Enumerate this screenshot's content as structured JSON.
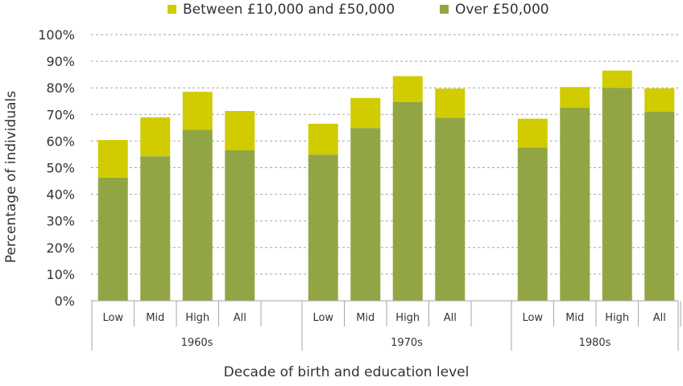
{
  "chart_data": {
    "type": "bar",
    "stacked": true,
    "title": "",
    "xlabel": "Decade of birth and education level",
    "ylabel": "Percentage of individuals",
    "ylim": [
      0,
      100
    ],
    "yticks": [
      0,
      10,
      20,
      30,
      40,
      50,
      60,
      70,
      80,
      90,
      100
    ],
    "ytick_suffix": "%",
    "grid": "horizontal dashed",
    "legend_position": "top",
    "groups": [
      {
        "label": "1960s",
        "categories": [
          "Low",
          "Mid",
          "High",
          "All"
        ]
      },
      {
        "label": "1970s",
        "categories": [
          "Low",
          "Mid",
          "High",
          "All"
        ]
      },
      {
        "label": "1980s",
        "categories": [
          "Low",
          "Mid",
          "High",
          "All"
        ]
      }
    ],
    "series": [
      {
        "name": "Over £50,000",
        "color": "#92a544",
        "values": [
          46.3,
          54.3,
          64.2,
          56.6,
          54.9,
          64.9,
          74.7,
          68.8,
          57.6,
          72.5,
          80.0,
          71.1
        ]
      },
      {
        "name": "Between £10,000 and £50,000",
        "color": "#d0cc00",
        "values": [
          14.1,
          14.6,
          14.3,
          14.7,
          11.6,
          11.3,
          9.7,
          10.9,
          10.8,
          7.8,
          6.5,
          8.7
        ]
      }
    ],
    "legend_order": [
      "Between £10,000 and £50,000",
      "Over £50,000"
    ]
  }
}
